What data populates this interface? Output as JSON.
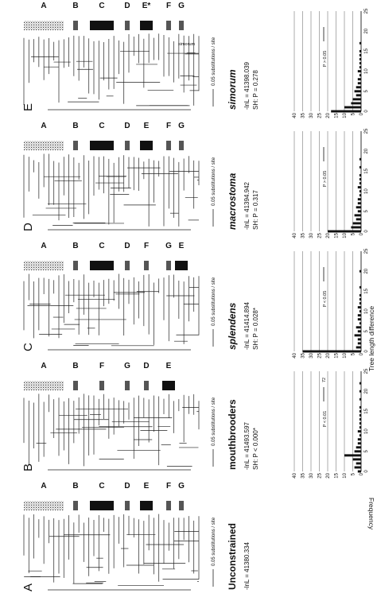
{
  "figure": {
    "panels": [
      {
        "letter": "A",
        "model": "Unconstrained",
        "italic": false,
        "lnl": "-lnL = 41380.334",
        "sh": "",
        "scale": "0.05 substitutions / site",
        "clades": [
          "A",
          "B",
          "C",
          "D",
          "E",
          "F",
          "G"
        ]
      },
      {
        "letter": "B",
        "model": "mouthbrooders",
        "italic": false,
        "lnl": "-lnL = 41493.597",
        "sh": "SH: P < 0.000*",
        "scale": "0.05 substitutions / site",
        "clades": [
          "A",
          "B",
          "F",
          "G",
          "D",
          "E"
        ]
      },
      {
        "letter": "C",
        "model": "splendens",
        "italic": true,
        "lnl": "-lnL = 41414.894",
        "sh": "SH: P = 0.028*",
        "scale": "0.05 substitutions / site",
        "clades": [
          "A",
          "B",
          "C",
          "D",
          "F",
          "G",
          "E"
        ]
      },
      {
        "letter": "D",
        "model": "macrostoma",
        "italic": true,
        "lnl": "-lnL = 41394.942",
        "sh": "SH: P = 0.317",
        "scale": "0.05 substitutions / site",
        "clades": [
          "A",
          "B",
          "C",
          "D",
          "E",
          "F",
          "G"
        ]
      },
      {
        "letter": "E",
        "model": "simorum",
        "italic": true,
        "lnl": "-lnL = 41398.039",
        "sh": "SH: P = 0.278",
        "scale": "0.05 substitutions / site",
        "clades": [
          "A",
          "B",
          "C",
          "D",
          "E*",
          "F",
          "G"
        ],
        "extra_label": "simorum"
      }
    ],
    "histogram_axis": {
      "ylabel": "Frequency",
      "xlabel": "Tree length difference",
      "freq_ticks": [
        "0",
        "5",
        "10",
        "15",
        "20",
        "25",
        "30",
        "35",
        "40"
      ],
      "diff_ticks": [
        "0",
        "5",
        "10",
        "15",
        "20",
        "25"
      ]
    }
  },
  "chart_data": [
    {
      "type": "bar",
      "panel": "B",
      "xlabel": "Tree length difference",
      "ylabel": "Frequency",
      "xlim": [
        0,
        25
      ],
      "ylim": [
        0,
        40
      ],
      "x": [
        0,
        1,
        2,
        3,
        4,
        5,
        6,
        7,
        8,
        9,
        10,
        11,
        12,
        13,
        14,
        15,
        16,
        17,
        18,
        19,
        20,
        21,
        22,
        23,
        24,
        25
      ],
      "values": [
        2,
        4,
        3,
        5,
        10,
        4,
        3,
        2,
        2,
        1,
        2,
        1,
        1,
        1,
        1,
        1,
        1,
        0,
        1,
        0,
        1,
        0,
        1,
        0,
        0,
        0
      ],
      "annotation": "P < 0.01",
      "observed_value_label": "72"
    },
    {
      "type": "bar",
      "panel": "C",
      "xlabel": "Tree length difference",
      "ylabel": "Frequency",
      "xlim": [
        0,
        25
      ],
      "ylim": [
        0,
        40
      ],
      "x": [
        0,
        1,
        2,
        3,
        4,
        5,
        6,
        7,
        8,
        9,
        10,
        11,
        12,
        13,
        14,
        15,
        16,
        17,
        18,
        19,
        20,
        21,
        22,
        23,
        24,
        25
      ],
      "values": [
        35,
        3,
        2,
        2,
        4,
        2,
        3,
        1,
        2,
        2,
        1,
        2,
        1,
        1,
        1,
        0,
        1,
        0,
        0,
        0,
        1,
        0,
        0,
        0,
        0,
        0
      ],
      "annotation": "P < 0.05"
    },
    {
      "type": "bar",
      "panel": "D",
      "xlabel": "Tree length difference",
      "ylabel": "Frequency",
      "xlim": [
        0,
        25
      ],
      "ylim": [
        0,
        40
      ],
      "x": [
        0,
        1,
        2,
        3,
        4,
        5,
        6,
        7,
        8,
        9,
        10,
        11,
        12,
        13,
        14,
        15,
        16,
        17,
        18,
        19,
        20,
        21,
        22,
        23,
        24,
        25
      ],
      "values": [
        20,
        6,
        5,
        3,
        4,
        2,
        3,
        2,
        2,
        1,
        1,
        2,
        1,
        1,
        1,
        0,
        1,
        0,
        1,
        0,
        0,
        0,
        0,
        0,
        0,
        0
      ],
      "annotation": "P > 0.05"
    },
    {
      "type": "bar",
      "panel": "E",
      "xlabel": "Tree length difference",
      "ylabel": "Frequency",
      "xlim": [
        0,
        25
      ],
      "ylim": [
        0,
        40
      ],
      "x": [
        0,
        1,
        2,
        3,
        4,
        5,
        6,
        7,
        8,
        9,
        10,
        11,
        12,
        13,
        14,
        15,
        16,
        17,
        18,
        19,
        20,
        21,
        22,
        23,
        24,
        25
      ],
      "values": [
        18,
        10,
        6,
        5,
        3,
        4,
        3,
        2,
        2,
        1,
        2,
        1,
        1,
        1,
        1,
        1,
        0,
        1,
        0,
        0,
        0,
        0,
        0,
        0,
        0,
        0
      ],
      "annotation": "P > 0.05"
    }
  ]
}
